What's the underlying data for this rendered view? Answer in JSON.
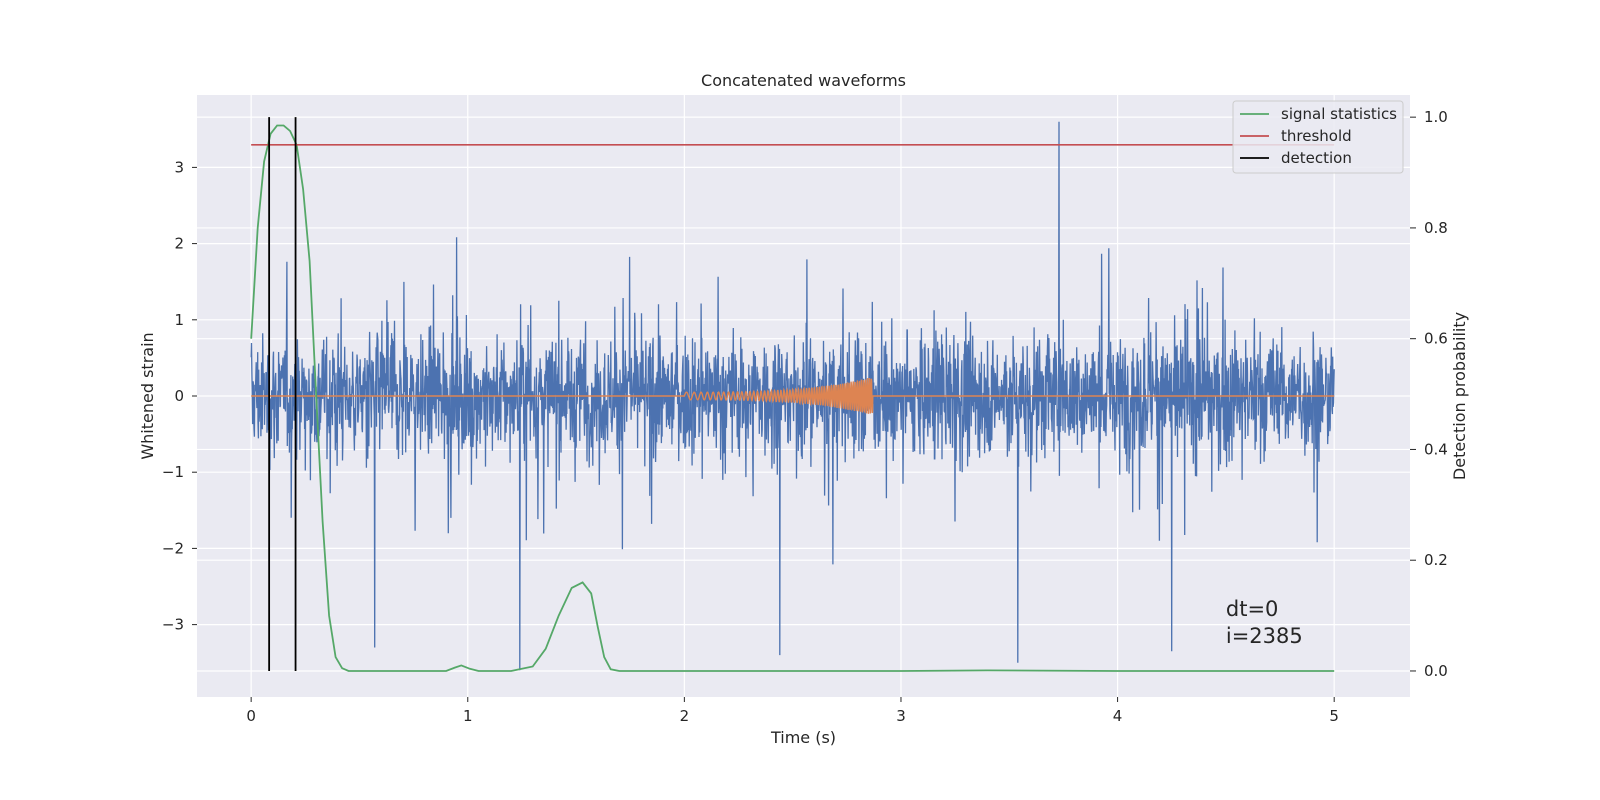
{
  "chart_data": {
    "type": "line",
    "title": "Concatenated waveforms",
    "xlabel": "Time (s)",
    "ylabel": "Whitened strain",
    "y2label": "Detection probability",
    "xlim": [
      -0.25,
      5.35
    ],
    "ylim": [
      -3.95,
      3.95
    ],
    "y2lim": [
      -0.047,
      1.04
    ],
    "xticks": [
      0,
      1,
      2,
      3,
      4,
      5
    ],
    "yticks": [
      -3,
      -2,
      -1,
      0,
      1,
      2,
      3
    ],
    "y2ticks": [
      0.0,
      0.2,
      0.4,
      0.6,
      0.8,
      1.0
    ],
    "y2tick_labels": [
      "0.0",
      "0.2",
      "0.4",
      "0.6",
      "0.8",
      "1.0"
    ],
    "grid": true,
    "legend_position": "top-right",
    "series": [
      {
        "axis": "left",
        "color": "#4c72b0",
        "x_range": [
          0,
          5
        ],
        "noise_envelope": 1.4,
        "peak_values": [
          {
            "x": 1.24,
            "y": -3.6
          },
          {
            "x": 3.73,
            "y": 3.6
          },
          {
            "x": 4.25,
            "y": -3.35
          },
          {
            "x": 2.44,
            "y": -3.4
          },
          {
            "x": 0.57,
            "y": -3.3
          },
          {
            "x": 3.54,
            "y": -3.5
          }
        ]
      },
      {
        "axis": "left",
        "color": "#dd8452",
        "x_range": [
          0,
          5
        ],
        "chirp_start": 2.0,
        "chirp_end": 2.87,
        "chirp_peak_amplitude": 0.25
      },
      {
        "name": "signal statistics",
        "axis": "right",
        "color": "#55a868",
        "x": [
          0.0,
          0.03,
          0.06,
          0.09,
          0.12,
          0.15,
          0.18,
          0.21,
          0.24,
          0.27,
          0.3,
          0.33,
          0.36,
          0.39,
          0.42,
          0.45,
          0.5,
          0.9,
          0.94,
          0.97,
          1.01,
          1.05,
          1.2,
          1.3,
          1.36,
          1.42,
          1.48,
          1.53,
          1.57,
          1.6,
          1.63,
          1.66,
          1.7,
          2.0,
          3.0,
          3.4,
          4.0,
          5.0
        ],
        "values": [
          0.6,
          0.8,
          0.92,
          0.97,
          0.985,
          0.985,
          0.975,
          0.95,
          0.87,
          0.74,
          0.5,
          0.27,
          0.1,
          0.025,
          0.005,
          0.0,
          0.0,
          0.0,
          0.006,
          0.01,
          0.004,
          0.0,
          0.0,
          0.008,
          0.04,
          0.1,
          0.15,
          0.16,
          0.14,
          0.08,
          0.025,
          0.003,
          0.0,
          0.0,
          0.0,
          0.001,
          0.0,
          0.0
        ]
      },
      {
        "name": "threshold",
        "axis": "right",
        "color": "#c44e52",
        "x": [
          0,
          5
        ],
        "values": [
          0.95,
          0.95
        ]
      },
      {
        "name": "detection",
        "axis": "right",
        "color": "#000000",
        "vlines_x": [
          0.083,
          0.205
        ],
        "vline_ymin": 0.0,
        "vline_ymax": 1.0
      }
    ],
    "annotations": [
      "dt=0",
      "i=2385"
    ]
  }
}
